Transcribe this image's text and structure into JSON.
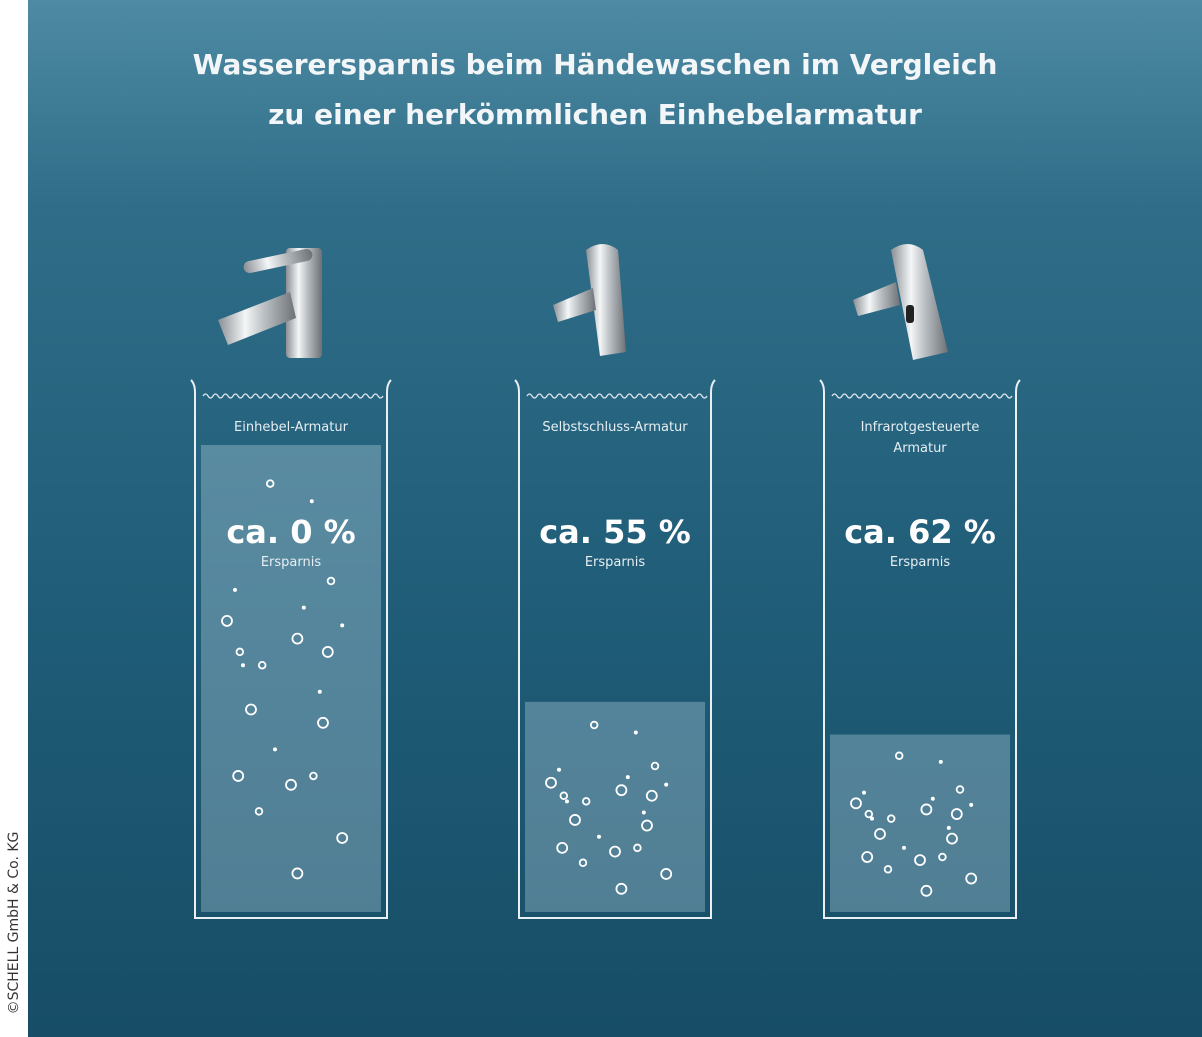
{
  "chart_data": {
    "type": "bar",
    "title": "Wasserersparnis beim Händewaschen im Vergleich zu einer herkömmlichen Einhebelarmatur",
    "categories": [
      "Einhebel-Armatur",
      "Selbstschluss-Armatur",
      "Infrarotgesteuerte Armatur"
    ],
    "values": [
      0,
      55,
      62
    ],
    "value_labels": [
      "ca. 0 %",
      "ca. 55 %",
      "ca. 62 %"
    ],
    "value_caption": "Ersparnis",
    "ylim": [
      0,
      100
    ],
    "color": "rgba(200,225,235,0.32)",
    "credit": "©SCHELL GmbH & Co. KG"
  }
}
